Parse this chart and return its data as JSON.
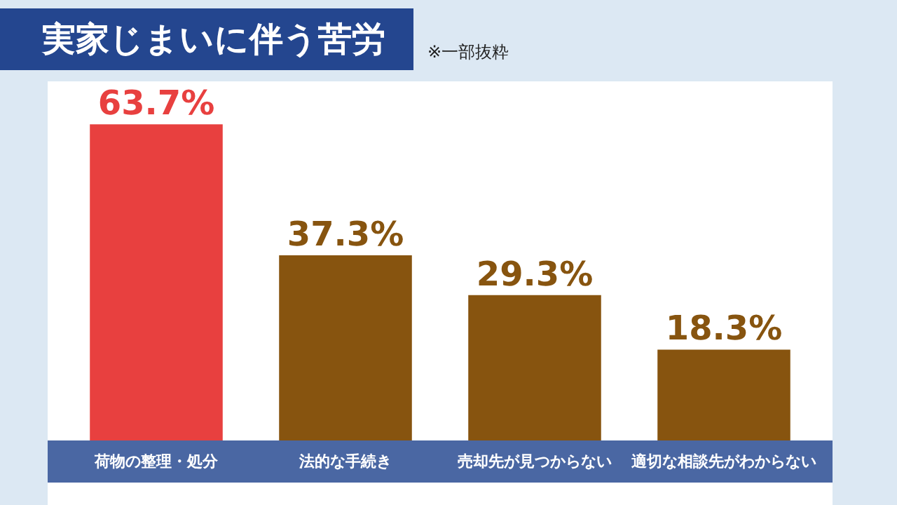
{
  "chart_data": {
    "type": "bar",
    "title": "実家じまいに伴う苦労",
    "annotations": [
      "※一部抜粋"
    ],
    "categories": [
      "荷物の整理・処分",
      "法的な手続き",
      "売却先が見つからない",
      "適切な相談先がわからない"
    ],
    "values": [
      63.7,
      37.3,
      29.3,
      18.3
    ],
    "colors": [
      "#e8403f",
      "#87540f",
      "#87540f",
      "#87540f"
    ],
    "value_labels": [
      "63.7%",
      "37.3%",
      "29.3%",
      "18.3%"
    ]
  }
}
